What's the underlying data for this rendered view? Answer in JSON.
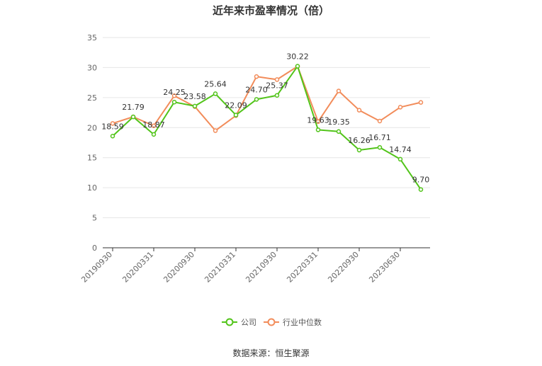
{
  "title": "近年来市盈率情况（倍）",
  "source": "数据来源：恒生聚源",
  "colors": {
    "company": "#52c41a",
    "industry": "#f28c5a",
    "grid": "#e6e6e6",
    "axis": "#333333"
  },
  "chart_data": {
    "type": "line",
    "title": "近年来市盈率情况（倍）",
    "x_tick_labels": [
      "20190930",
      "20200331",
      "20200930",
      "20210331",
      "20210930",
      "20220331",
      "20220930",
      "20230630"
    ],
    "y_ticks": [
      0,
      5,
      10,
      15,
      20,
      25,
      30,
      35
    ],
    "ylim": [
      0,
      35
    ],
    "grid": true,
    "legend_position": "bottom-center",
    "series": [
      {
        "name": "公司",
        "values": [
          18.59,
          21.79,
          18.87,
          24.25,
          23.58,
          25.64,
          22.09,
          24.7,
          25.37,
          30.22,
          19.63,
          19.35,
          16.26,
          16.71,
          14.74,
          9.7
        ],
        "labels": [
          "18.59",
          "21.79",
          "18.87",
          "24.25",
          "23.58",
          "25.64",
          "22.09",
          "24.70",
          "25.37",
          "30.22",
          "19.63",
          "19.35",
          "16.26",
          "16.71",
          "14.74",
          "9.70"
        ]
      },
      {
        "name": "行业中位数",
        "values": [
          20.7,
          21.8,
          20.3,
          25.3,
          23.5,
          19.5,
          22.0,
          28.5,
          28.0,
          30.2,
          21.0,
          26.1,
          22.9,
          21.1,
          23.4,
          24.2
        ]
      }
    ]
  }
}
